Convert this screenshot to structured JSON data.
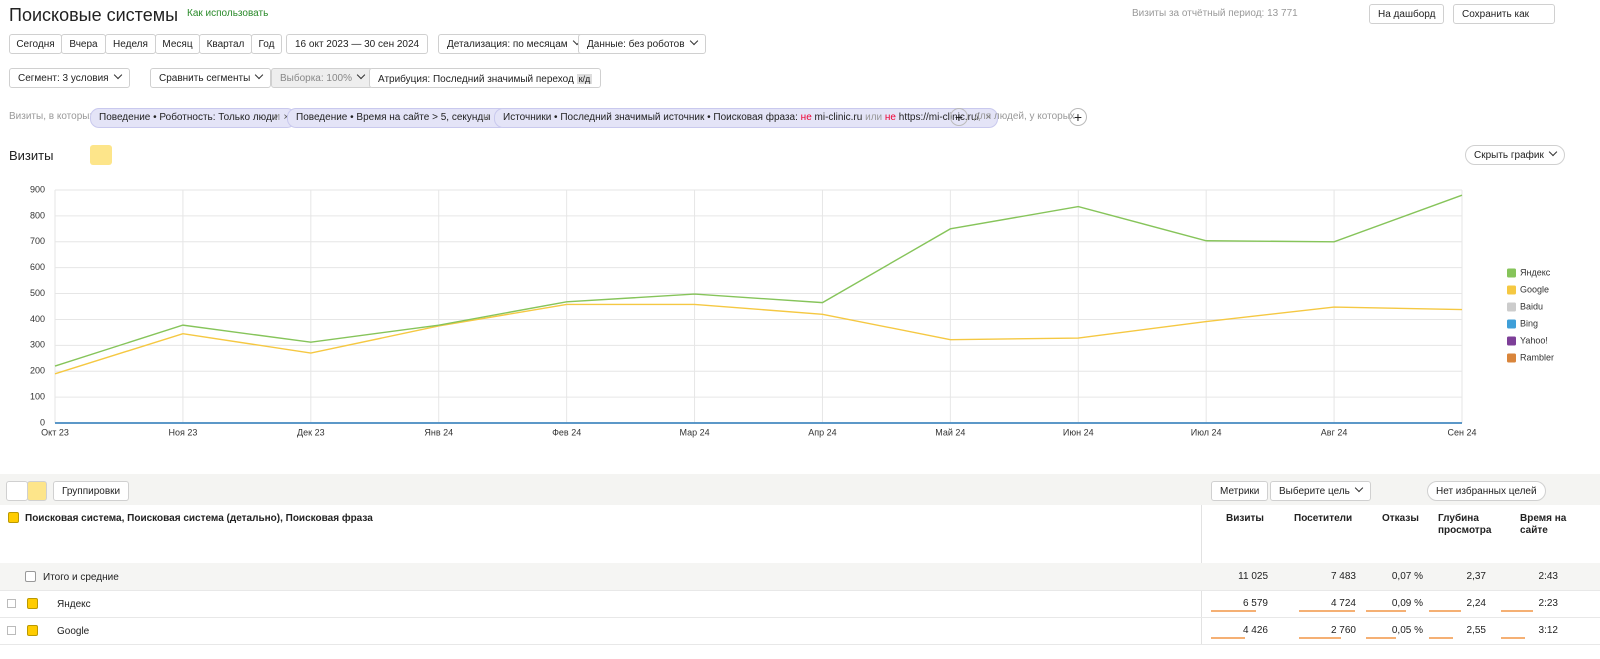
{
  "header": {
    "title": "Поисковые системы",
    "help_link": "Как использовать",
    "period_visits": "Визиты за отчётный период: 13 771",
    "dashboard_button": "На дашборд",
    "save_button": "Сохранить как"
  },
  "period_buttons": [
    "Сегодня",
    "Вчера",
    "Неделя",
    "Месяц",
    "Квартал",
    "Год"
  ],
  "date_range": "16 окт 2023 — 30 сен 2024",
  "detail": "Детализация: по месяцам",
  "data_filter": "Данные: без роботов",
  "segment": {
    "button": "Сегмент: 3 условия",
    "compare": "Сравнить сегменты",
    "sample": "Выборка: 100%",
    "attribution": "Атрибуция: Последний значимый переход",
    "attribution_badge": "к/д"
  },
  "filters": {
    "prefix": "Визиты, в которых",
    "chips": [
      "Поведение • Роботность: Только люди",
      "Поведение • Время на сайте > 5, секунды"
    ],
    "joiners": [
      "и",
      "и"
    ],
    "chip3": {
      "text": "Источники • Последний значимый источник • Поисковая фраза:",
      "not1": "не",
      "value1": "mi-clinic.ru",
      "or": "или",
      "not2": "не",
      "value2": "https://mi-clinic.ru/"
    },
    "people": "для людей, у которых"
  },
  "chart_section": {
    "title": "Визиты",
    "hide_button": "Скрыть график"
  },
  "chart_data": {
    "type": "line",
    "categories": [
      "Окт 23",
      "Ноя 23",
      "Дек 23",
      "Янв 24",
      "Фев 24",
      "Мар 24",
      "Апр 24",
      "Май 24",
      "Июн 24",
      "Июл 24",
      "Авг 24",
      "Сен 24"
    ],
    "ylim": [
      0,
      900
    ],
    "yticks": [
      0,
      100,
      200,
      300,
      400,
      500,
      600,
      700,
      800,
      900
    ],
    "grid": true,
    "legend": "right",
    "series": [
      {
        "name": "Яндекс",
        "color": "#86c45a",
        "visible": true,
        "values": [
          220,
          378,
          312,
          378,
          468,
          498,
          465,
          750,
          836,
          704,
          700,
          880
        ]
      },
      {
        "name": "Google",
        "color": "#f5c842",
        "visible": true,
        "values": [
          190,
          345,
          270,
          375,
          458,
          458,
          420,
          322,
          328,
          392,
          448,
          438
        ]
      },
      {
        "name": "Baidu",
        "color": "#c8c8c8",
        "visible": false,
        "values": [
          0,
          0,
          0,
          0,
          0,
          0,
          0,
          0,
          0,
          0,
          0,
          0
        ]
      },
      {
        "name": "Bing",
        "color": "#3f9fd8",
        "visible": true,
        "values": [
          0,
          0,
          0,
          0,
          0,
          0,
          0,
          0,
          0,
          0,
          0,
          0
        ]
      },
      {
        "name": "Yahoo!",
        "color": "#7d3f98",
        "visible": true,
        "values": [
          0,
          0,
          0,
          0,
          0,
          0,
          0,
          0,
          0,
          0,
          0,
          0
        ]
      },
      {
        "name": "Rambler",
        "color": "#d9853b",
        "visible": true,
        "values": [
          0,
          0,
          0,
          0,
          0,
          0,
          0,
          0,
          0,
          0,
          0,
          0
        ]
      }
    ]
  },
  "toolbar": {
    "groupings": "Группировки",
    "metrics": "Метрики",
    "goal": "Выберите цель",
    "favorites": "Нет избранных целей"
  },
  "table": {
    "dimension": "Поисковая система, Поисковая система (детально), Поисковая фраза",
    "columns": [
      "Визиты",
      "Посетители",
      "Отказы",
      "Глубина просмотра",
      "Время на сайте"
    ],
    "rows": [
      [
        "Итого и средние",
        "11 025",
        "7 483",
        "0,07 %",
        "2,37",
        "2:43"
      ],
      [
        "Яндекс",
        "6 579",
        "4 724",
        "0,09 %",
        "2,24",
        "2:23"
      ],
      [
        "Google",
        "4 426",
        "2 760",
        "0,05 %",
        "2,55",
        "3:12"
      ]
    ]
  }
}
